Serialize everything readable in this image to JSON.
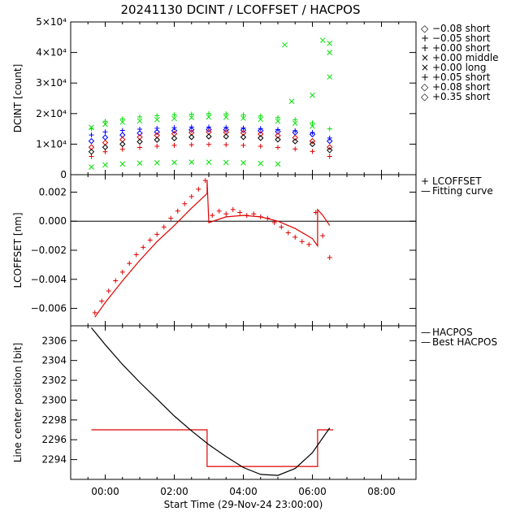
{
  "title": "20241130 DCINT / LCOFFSET / HACPOS",
  "xlabel": "Start Time (29-Nov-24 23:00:00)",
  "xticks": [
    "00:00",
    "02:00",
    "04:00",
    "06:00",
    "08:00"
  ],
  "colors": {
    "black": "#000000",
    "blue": "#0000ff",
    "green": "#00e000",
    "red": "#e00000"
  },
  "chart_data": [
    {
      "type": "scatter",
      "name": "dcint-panel",
      "ylabel": "DCINT [count]",
      "xlim": [
        -1,
        9
      ],
      "ylim": [
        0,
        50000
      ],
      "yticks": [
        {
          "v": 0,
          "label": "0"
        },
        {
          "v": 10000,
          "label": "1×10⁴"
        },
        {
          "v": 20000,
          "label": "2×10⁴"
        },
        {
          "v": 30000,
          "label": "3×10⁴"
        },
        {
          "v": 40000,
          "label": "4×10⁴"
        },
        {
          "v": 50000,
          "label": "5×10⁴"
        }
      ],
      "legend": [
        {
          "symbol": "◇",
          "label": "−0.08 short",
          "color": "#0000ff"
        },
        {
          "symbol": "+",
          "label": "−0.05 short",
          "color": "#0000ff"
        },
        {
          "symbol": "+",
          "label": "+0.00 short",
          "color": "#00e000"
        },
        {
          "symbol": "×",
          "label": "+0.00 middle",
          "color": "#00e000"
        },
        {
          "symbol": "×",
          "label": "+0.00 long",
          "color": "#00e000"
        },
        {
          "symbol": "+",
          "label": "+0.05 short",
          "color": "#e00000"
        },
        {
          "symbol": "◇",
          "label": "+0.08 short",
          "color": "#e00000"
        },
        {
          "symbol": "◇",
          "label": "+0.35 short",
          "color": "#000000"
        }
      ],
      "series": [
        {
          "name": "-0.08 short",
          "marker": "diamond",
          "color": "#0000ff",
          "x": [
            -0.4,
            0.0,
            0.5,
            1.0,
            1.5,
            2.0,
            2.5,
            3.0,
            3.5,
            4.0,
            4.5,
            5.0,
            5.5,
            6.0,
            6.5
          ],
          "y": [
            11000,
            12200,
            13000,
            13600,
            14000,
            14400,
            14700,
            14800,
            14700,
            14600,
            14400,
            14100,
            13800,
            13200,
            11000
          ]
        },
        {
          "name": "-0.05 short",
          "marker": "plus",
          "color": "#0000ff",
          "x": [
            -0.4,
            0.0,
            0.5,
            1.0,
            1.5,
            2.0,
            2.5,
            3.0,
            3.5,
            4.0,
            4.5,
            5.0,
            5.5,
            6.0,
            6.5
          ],
          "y": [
            13000,
            14000,
            14500,
            14900,
            15200,
            15400,
            15600,
            15600,
            15500,
            15300,
            15100,
            14800,
            14400,
            13800,
            12000
          ]
        },
        {
          "name": "+0.00 short",
          "marker": "plus",
          "color": "#00e000",
          "x": [
            -0.4,
            0.0,
            0.5,
            1.0,
            1.5,
            2.0,
            2.5,
            3.0,
            3.5,
            4.0,
            4.5,
            5.0,
            5.5,
            6.0,
            6.5
          ],
          "y": [
            15000,
            17500,
            18300,
            18900,
            19300,
            19600,
            19800,
            20000,
            19900,
            19600,
            19200,
            18700,
            18000,
            17000,
            15000
          ]
        },
        {
          "name": "+0.00 middle",
          "marker": "x",
          "color": "#00e000",
          "x": [
            -0.4,
            0.0,
            0.5,
            1.0,
            1.5,
            2.0,
            2.5,
            3.0,
            3.5,
            4.0,
            4.5,
            5.0,
            5.2,
            5.4,
            6.0,
            6.3,
            6.5
          ],
          "y": [
            2500,
            3200,
            3500,
            3800,
            3900,
            4000,
            4100,
            4100,
            4000,
            3900,
            3700,
            3500,
            42500,
            24000,
            26000,
            44000,
            40000
          ]
        },
        {
          "name": "+0.00 long",
          "marker": "x",
          "color": "#00e000",
          "x": [
            -0.4,
            0.0,
            0.5,
            1.0,
            1.5,
            2.0,
            2.5,
            3.0,
            3.5,
            4.0,
            4.5,
            5.0,
            5.5,
            6.0,
            6.5,
            6.5
          ],
          "y": [
            15500,
            16500,
            17200,
            17600,
            18000,
            18400,
            18700,
            18900,
            18800,
            18500,
            18100,
            17500,
            16800,
            15900,
            32000,
            43000
          ]
        },
        {
          "name": "+0.05 short",
          "marker": "plus",
          "color": "#e00000",
          "x": [
            -0.4,
            0.0,
            0.5,
            1.0,
            1.5,
            2.0,
            2.5,
            3.0,
            3.5,
            4.0,
            4.5,
            5.0,
            5.5,
            6.0,
            6.5
          ],
          "y": [
            6000,
            7500,
            8300,
            8900,
            9300,
            9600,
            9800,
            9900,
            9800,
            9600,
            9300,
            8900,
            8400,
            7600,
            6000
          ]
        },
        {
          "name": "+0.08 short",
          "marker": "diamond",
          "color": "#e00000",
          "x": [
            -0.4,
            0.0,
            0.5,
            1.0,
            1.5,
            2.0,
            2.5,
            3.0,
            3.5,
            4.0,
            4.5,
            5.0,
            5.5,
            6.0,
            6.5
          ],
          "y": [
            9000,
            10500,
            11500,
            12300,
            12900,
            13400,
            13800,
            14000,
            13900,
            13700,
            13300,
            12800,
            12100,
            11000,
            9000
          ]
        },
        {
          "name": "+0.35 short",
          "marker": "diamond",
          "color": "#000000",
          "x": [
            -0.4,
            0.0,
            0.5,
            1.0,
            1.5,
            2.0,
            2.5,
            3.0,
            3.5,
            4.0,
            4.5,
            5.0,
            5.5,
            6.0,
            6.5
          ],
          "y": [
            7500,
            9000,
            10000,
            10800,
            11400,
            11900,
            12300,
            12500,
            12500,
            12300,
            12000,
            11500,
            10900,
            10000,
            8000
          ]
        }
      ]
    },
    {
      "type": "scatter",
      "name": "lcoffset-panel",
      "ylabel": "LCOFFSET [nm]",
      "xlim": [
        -1,
        9
      ],
      "ylim": [
        -0.0072,
        0.0032
      ],
      "zero_line": true,
      "yticks": [
        {
          "v": -0.006,
          "label": "−0.006"
        },
        {
          "v": -0.004,
          "label": "−0.004"
        },
        {
          "v": -0.002,
          "label": "−0.002"
        },
        {
          "v": 0.0,
          "label": "0.000"
        },
        {
          "v": 0.002,
          "label": "0.002"
        }
      ],
      "legend": [
        {
          "symbol": "+",
          "label": "LCOFFSET",
          "color": "#e00000"
        },
        {
          "symbol": "—",
          "label": "Fitting curve",
          "color": "#e00000"
        }
      ],
      "series": [
        {
          "name": "LCOFFSET",
          "marker": "plus",
          "color": "#e00000",
          "x": [
            -0.3,
            -0.1,
            0.1,
            0.3,
            0.5,
            0.7,
            0.9,
            1.1,
            1.3,
            1.5,
            1.7,
            1.9,
            2.1,
            2.3,
            2.5,
            2.7,
            2.9,
            3.1,
            3.3,
            3.5,
            3.7,
            3.9,
            4.1,
            4.3,
            4.5,
            4.7,
            4.9,
            5.1,
            5.3,
            5.5,
            5.7,
            5.9,
            6.1,
            6.3,
            6.5
          ],
          "y": [
            -0.0063,
            -0.0055,
            -0.0048,
            -0.0041,
            -0.0035,
            -0.0029,
            -0.0023,
            -0.0018,
            -0.0013,
            -0.0009,
            -0.0004,
            0.0002,
            0.0007,
            0.0012,
            0.0017,
            0.0022,
            0.0028,
            0.0004,
            0.0007,
            0.0005,
            0.0008,
            0.0006,
            0.0004,
            0.0005,
            0.0003,
            0.0002,
            -0.0001,
            -0.0004,
            -0.0008,
            -0.0011,
            -0.0014,
            -0.0016,
            0.0006,
            -0.001,
            -0.0025
          ]
        },
        {
          "name": "Fitting curve",
          "marker": "line",
          "color": "#e00000",
          "x": [
            -0.3,
            0.0,
            0.5,
            1.0,
            1.5,
            2.0,
            2.5,
            2.95,
            2.95,
            3.0,
            3.5,
            4.0,
            4.5,
            5.0,
            5.5,
            6.0,
            6.15,
            6.15,
            6.3,
            6.5
          ],
          "y": [
            -0.0066,
            -0.0056,
            -0.0041,
            -0.0027,
            -0.0014,
            -0.0003,
            0.0009,
            0.0019,
            0.0028,
            -0.0001,
            0.0003,
            0.0004,
            0.0003,
            0.0,
            -0.0005,
            -0.0012,
            -0.0017,
            0.0008,
            0.0004,
            -0.0003
          ]
        }
      ]
    },
    {
      "type": "line",
      "name": "hacpos-panel",
      "ylabel": "Line center position [bit]",
      "xlim": [
        -1,
        9
      ],
      "ylim": [
        2292.0,
        2307.5
      ],
      "yticks": [
        {
          "v": 2294,
          "label": "2294"
        },
        {
          "v": 2296,
          "label": "2296"
        },
        {
          "v": 2298,
          "label": "2298"
        },
        {
          "v": 2300,
          "label": "2300"
        },
        {
          "v": 2302,
          "label": "2302"
        },
        {
          "v": 2304,
          "label": "2304"
        },
        {
          "v": 2306,
          "label": "2306"
        }
      ],
      "legend": [
        {
          "symbol": "—",
          "label": "HACPOS",
          "color": "#e00000"
        },
        {
          "symbol": "—",
          "label": "Best HACPOS",
          "color": "#000000"
        }
      ],
      "series": [
        {
          "name": "HACPOS",
          "marker": "line",
          "color": "#e00000",
          "x": [
            -0.4,
            2.95,
            2.95,
            6.15,
            6.15,
            6.6
          ],
          "y": [
            2297.0,
            2297.0,
            2293.3,
            2293.3,
            2297.0,
            2297.0
          ]
        },
        {
          "name": "Best HACPOS",
          "marker": "line",
          "color": "#000000",
          "x": [
            -0.4,
            0.0,
            0.5,
            1.0,
            1.5,
            2.0,
            2.5,
            3.0,
            3.5,
            4.0,
            4.5,
            5.0,
            5.5,
            6.0,
            6.5
          ],
          "y": [
            2307.3,
            2305.6,
            2303.6,
            2301.8,
            2300.1,
            2298.4,
            2296.9,
            2295.5,
            2294.3,
            2293.2,
            2292.5,
            2292.4,
            2293.1,
            2294.7,
            2297.2
          ]
        }
      ]
    }
  ]
}
